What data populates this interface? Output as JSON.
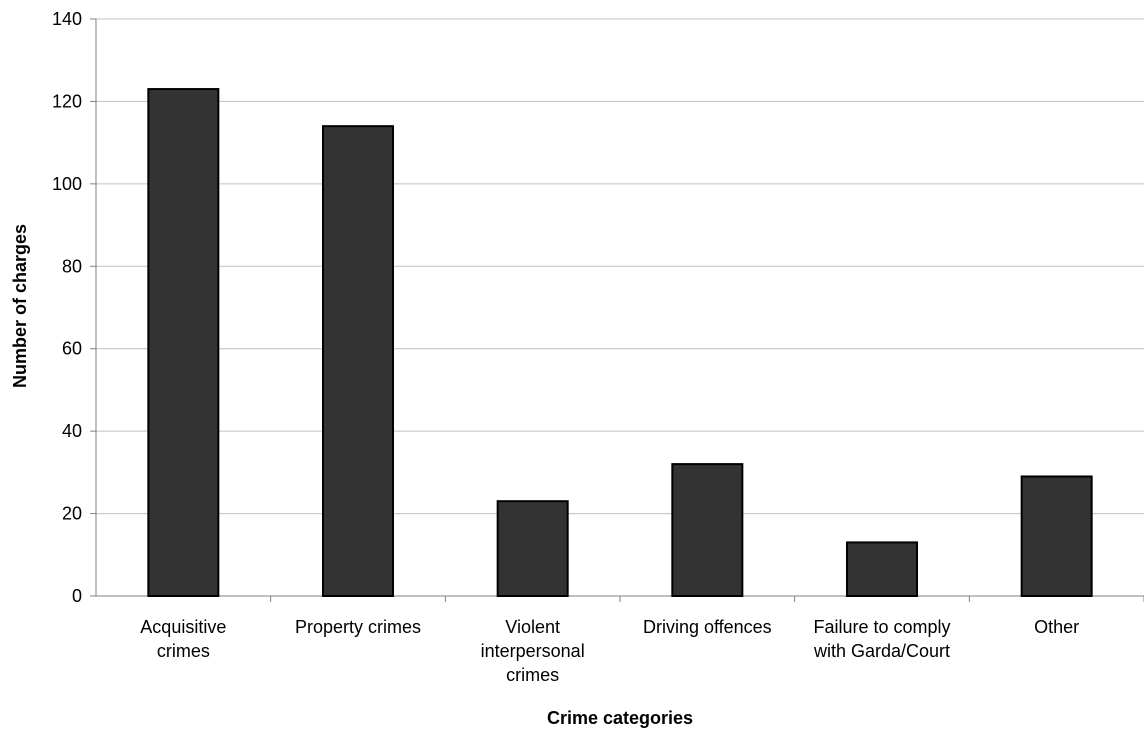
{
  "chart_data": {
    "type": "bar",
    "title": "",
    "xlabel": "Crime categories",
    "ylabel": "Number of charges",
    "categories": [
      [
        "Acquisitive",
        "crimes"
      ],
      [
        "Property crimes"
      ],
      [
        "Violent",
        "interpersonal",
        "crimes"
      ],
      [
        "Driving offences"
      ],
      [
        "Failure to comply",
        "with Garda/Court"
      ],
      [
        "Other"
      ]
    ],
    "values": [
      123,
      114,
      23,
      32,
      13,
      29
    ],
    "ylim": [
      0,
      140
    ],
    "yticks": [
      0,
      20,
      40,
      60,
      80,
      100,
      120,
      140
    ],
    "grid": true,
    "legend": "none",
    "colors": {
      "bar": "#333333",
      "bar_stroke": "#000000",
      "grid": "#c0c0c0",
      "axis": "#808080"
    }
  }
}
